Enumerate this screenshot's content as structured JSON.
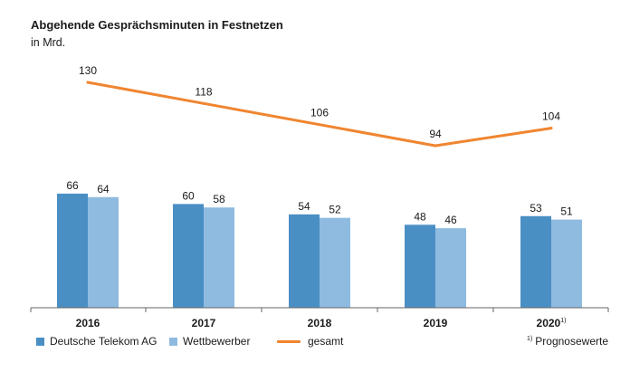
{
  "title": "Abgehende Gesprächsminuten in Festnetzen",
  "subtitle": "in Mrd.",
  "footnote": {
    "marker": "1)",
    "text": "Prognosewerte"
  },
  "colors": {
    "telekom": "#4a8fc4",
    "competitor": "#8fbbe0",
    "total": "#f08530",
    "axis": "#666666"
  },
  "chart_data": {
    "type": "bar",
    "categories": [
      "2016",
      "2017",
      "2018",
      "2019",
      "2020"
    ],
    "category_footnotes": [
      "",
      "",
      "",
      "",
      "1)"
    ],
    "series": [
      {
        "name": "Deutsche Telekom AG",
        "type": "bar",
        "values": [
          66,
          60,
          54,
          48,
          53
        ]
      },
      {
        "name": "Wettbewerber",
        "type": "bar",
        "values": [
          64,
          58,
          52,
          46,
          51
        ]
      },
      {
        "name": "gesamt",
        "type": "line",
        "values": [
          130,
          118,
          106,
          94,
          104
        ]
      }
    ],
    "legend": "bottom-left"
  }
}
